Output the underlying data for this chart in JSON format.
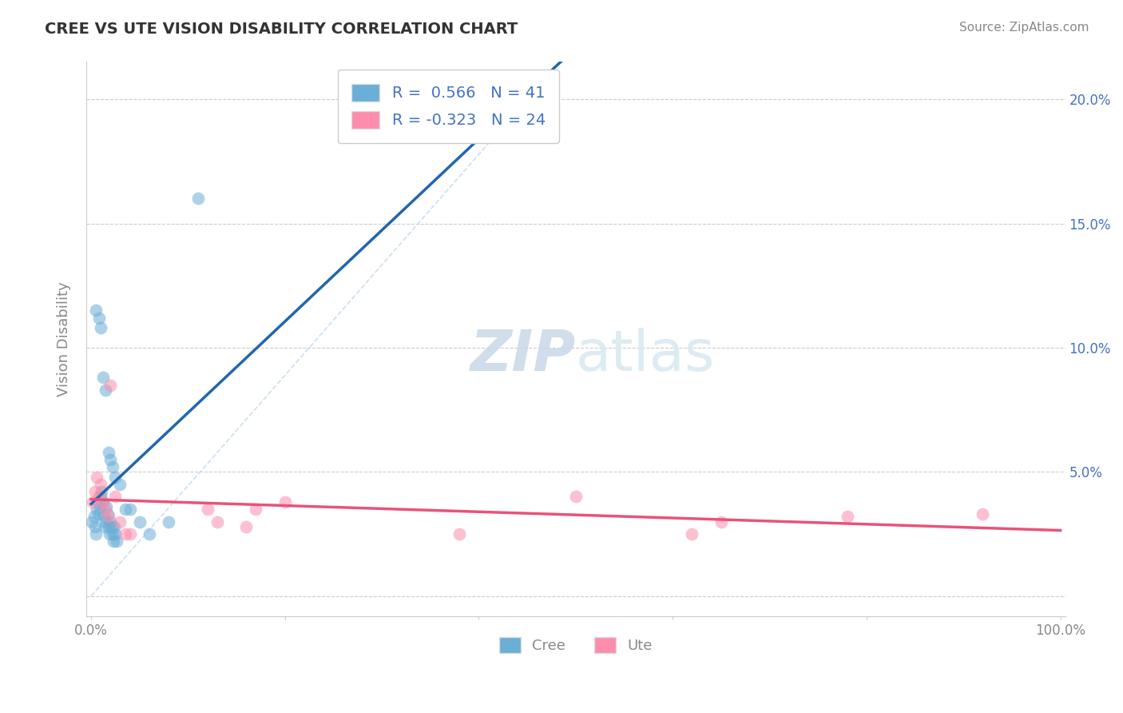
{
  "title": "CREE VS UTE VISION DISABILITY CORRELATION CHART",
  "source": "Source: ZipAtlas.com",
  "ylabel": "Vision Disability",
  "xlabel": "",
  "cree_color": "#6baed6",
  "ute_color": "#fc8dac",
  "cree_line_color": "#2166ac",
  "ute_line_color": "#e8537a",
  "diagonal_color": "#c6dbef",
  "background_color": "#ffffff",
  "cree_R": 0.566,
  "cree_N": 41,
  "ute_R": -0.323,
  "ute_N": 24,
  "xlim": [
    -0.005,
    1.005
  ],
  "ylim": [
    -0.008,
    0.215
  ],
  "xticks": [
    0.0,
    0.2,
    0.4,
    0.6,
    0.8,
    1.0
  ],
  "yticks": [
    0.0,
    0.05,
    0.1,
    0.15,
    0.2
  ],
  "xticklabels": [
    "0.0%",
    "",
    "",
    "",
    "",
    "100.0%"
  ],
  "yticklabels_right": [
    "",
    "5.0%",
    "10.0%",
    "15.0%",
    "20.0%"
  ],
  "cree_x": [
    0.001,
    0.003,
    0.004,
    0.005,
    0.006,
    0.007,
    0.008,
    0.009,
    0.01,
    0.011,
    0.012,
    0.013,
    0.014,
    0.015,
    0.016,
    0.017,
    0.018,
    0.019,
    0.02,
    0.021,
    0.022,
    0.023,
    0.024,
    0.025,
    0.026,
    0.005,
    0.008,
    0.01,
    0.012,
    0.015,
    0.018,
    0.02,
    0.022,
    0.025,
    0.03,
    0.035,
    0.04,
    0.05,
    0.06,
    0.08,
    0.11
  ],
  "cree_y": [
    0.03,
    0.032,
    0.028,
    0.025,
    0.035,
    0.038,
    0.033,
    0.036,
    0.04,
    0.042,
    0.038,
    0.032,
    0.028,
    0.03,
    0.036,
    0.033,
    0.028,
    0.025,
    0.03,
    0.028,
    0.025,
    0.022,
    0.028,
    0.025,
    0.022,
    0.115,
    0.112,
    0.108,
    0.088,
    0.083,
    0.058,
    0.055,
    0.052,
    0.048,
    0.045,
    0.035,
    0.035,
    0.03,
    0.025,
    0.03,
    0.16
  ],
  "ute_x": [
    0.002,
    0.004,
    0.006,
    0.008,
    0.01,
    0.012,
    0.015,
    0.018,
    0.02,
    0.025,
    0.03,
    0.035,
    0.04,
    0.12,
    0.13,
    0.16,
    0.17,
    0.2,
    0.38,
    0.5,
    0.62,
    0.65,
    0.78,
    0.92
  ],
  "ute_y": [
    0.038,
    0.042,
    0.048,
    0.04,
    0.045,
    0.038,
    0.035,
    0.032,
    0.085,
    0.04,
    0.03,
    0.025,
    0.025,
    0.035,
    0.03,
    0.028,
    0.035,
    0.038,
    0.025,
    0.04,
    0.025,
    0.03,
    0.032,
    0.033
  ],
  "watermark_zip": "ZIP",
  "watermark_atlas": "atlas",
  "cree_label": "Cree",
  "ute_label": "Ute"
}
